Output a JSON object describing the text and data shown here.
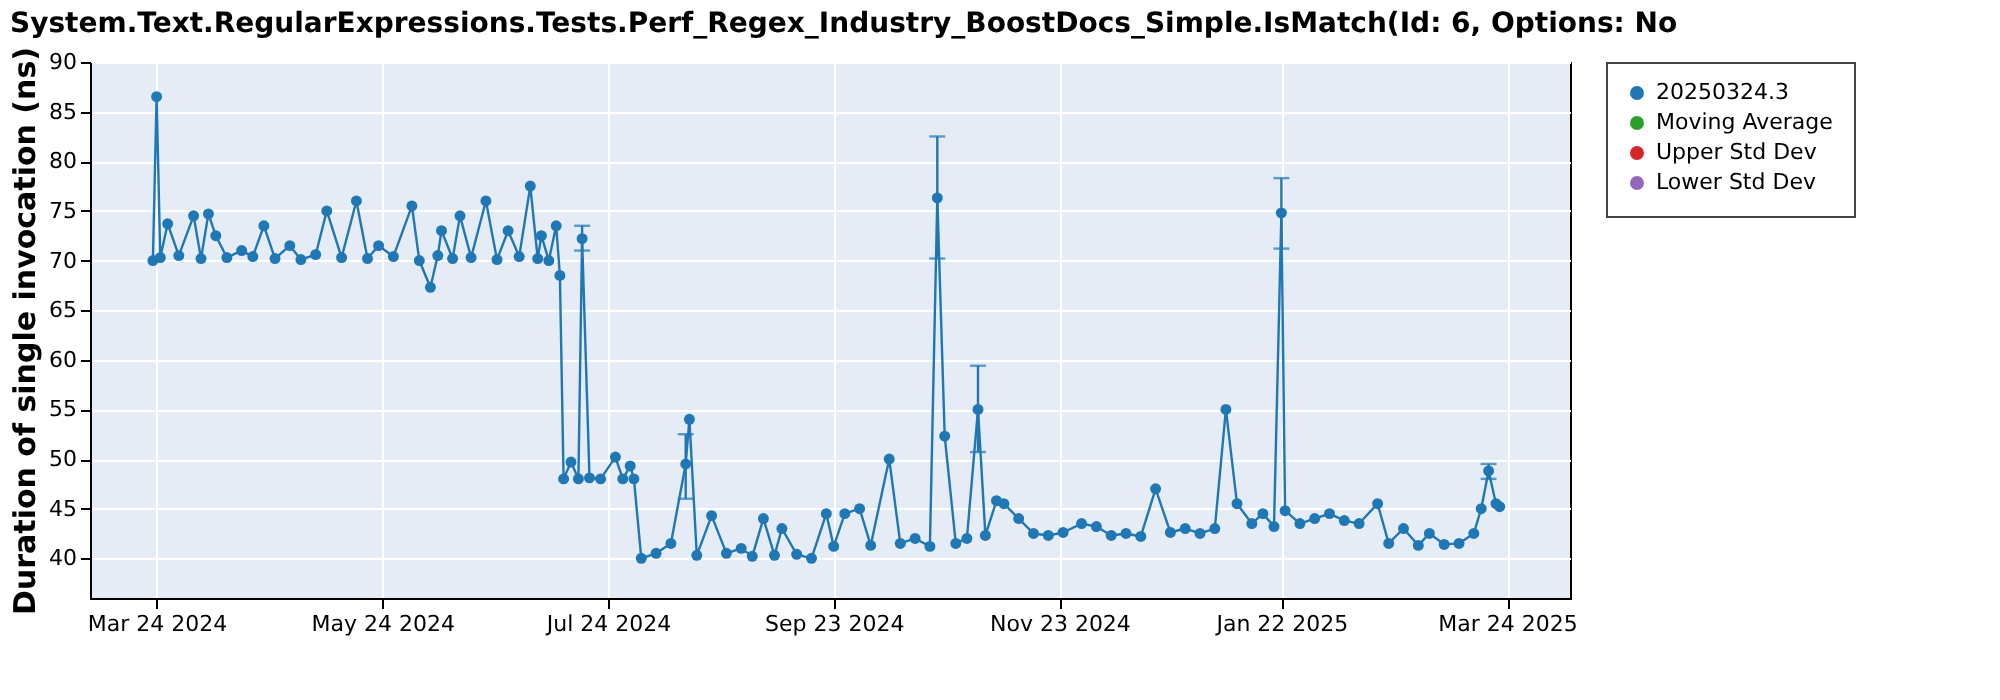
{
  "chart_data": {
    "type": "line",
    "title": "System.Text.RegularExpressions.Tests.Perf_Regex_Industry_BoostDocs_Simple.IsMatch(Id: 6, Options: No",
    "ylabel": "Duration of single invocation (ns)",
    "xlim": [
      "2024-03-06",
      "2025-04-10"
    ],
    "xticks": [
      {
        "value": "2024-03-24",
        "label": "Mar 24 2024"
      },
      {
        "value": "2024-05-24",
        "label": "May 24 2024"
      },
      {
        "value": "2024-07-24",
        "label": "Jul 24 2024"
      },
      {
        "value": "2024-09-23",
        "label": "Sep 23 2024"
      },
      {
        "value": "2024-11-23",
        "label": "Nov 23 2024"
      },
      {
        "value": "2025-01-22",
        "label": "Jan 22 2025"
      },
      {
        "value": "2025-03-24",
        "label": "Mar 24 2025"
      }
    ],
    "ylim": [
      36,
      90
    ],
    "yticks": [
      40,
      45,
      50,
      55,
      60,
      65,
      70,
      75,
      80,
      85,
      90
    ],
    "grid": true,
    "legend": "right",
    "marker": "circle",
    "line_style": "solid",
    "series": [
      {
        "name": "20250324.3",
        "color": "#1f77b4",
        "x": [
          "2024-03-23",
          "2024-03-24",
          "2024-03-25",
          "2024-03-27",
          "2024-03-30",
          "2024-04-03",
          "2024-04-05",
          "2024-04-07",
          "2024-04-09",
          "2024-04-12",
          "2024-04-16",
          "2024-04-19",
          "2024-04-22",
          "2024-04-25",
          "2024-04-29",
          "2024-05-02",
          "2024-05-06",
          "2024-05-09",
          "2024-05-13",
          "2024-05-17",
          "2024-05-20",
          "2024-05-23",
          "2024-05-27",
          "2024-06-01",
          "2024-06-03",
          "2024-06-06",
          "2024-06-08",
          "2024-06-09",
          "2024-06-12",
          "2024-06-14",
          "2024-06-17",
          "2024-06-21",
          "2024-06-24",
          "2024-06-27",
          "2024-06-30",
          "2024-07-03",
          "2024-07-05",
          "2024-07-06",
          "2024-07-08",
          "2024-07-10",
          "2024-07-11",
          "2024-07-12",
          "2024-07-14",
          "2024-07-16",
          "2024-07-17",
          "2024-07-19",
          "2024-07-22",
          "2024-07-26",
          "2024-07-28",
          "2024-07-30",
          "2024-07-31",
          "2024-08-02",
          "2024-08-06",
          "2024-08-10",
          "2024-08-14",
          "2024-08-15",
          "2024-08-17",
          "2024-08-21",
          "2024-08-25",
          "2024-08-29",
          "2024-09-01",
          "2024-09-04",
          "2024-09-07",
          "2024-09-09",
          "2024-09-13",
          "2024-09-17",
          "2024-09-21",
          "2024-09-23",
          "2024-09-26",
          "2024-09-30",
          "2024-10-03",
          "2024-10-08",
          "2024-10-11",
          "2024-10-15",
          "2024-10-19",
          "2024-10-21",
          "2024-10-23",
          "2024-10-26",
          "2024-10-29",
          "2024-11-01",
          "2024-11-03",
          "2024-11-06",
          "2024-11-08",
          "2024-11-12",
          "2024-11-16",
          "2024-11-20",
          "2024-11-24",
          "2024-11-29",
          "2024-12-03",
          "2024-12-07",
          "2024-12-11",
          "2024-12-15",
          "2024-12-19",
          "2024-12-23",
          "2024-12-27",
          "2024-12-31",
          "2025-01-04",
          "2025-01-07",
          "2025-01-10",
          "2025-01-14",
          "2025-01-17",
          "2025-01-20",
          "2025-01-22",
          "2025-01-23",
          "2025-01-27",
          "2025-01-31",
          "2025-02-04",
          "2025-02-08",
          "2025-02-12",
          "2025-02-17",
          "2025-02-20",
          "2025-02-24",
          "2025-02-28",
          "2025-03-03",
          "2025-03-07",
          "2025-03-11",
          "2025-03-15",
          "2025-03-17",
          "2025-03-19",
          "2025-03-21",
          "2025-03-22"
        ],
        "values": [
          70.0,
          86.5,
          70.3,
          73.7,
          70.5,
          74.5,
          70.2,
          74.7,
          72.5,
          70.3,
          71.0,
          70.4,
          73.5,
          70.2,
          71.5,
          70.1,
          70.6,
          75.0,
          70.3,
          76.0,
          70.2,
          71.5,
          70.4,
          75.5,
          70.0,
          67.3,
          70.5,
          73.0,
          70.2,
          74.5,
          70.3,
          76.0,
          70.1,
          73.0,
          70.4,
          77.5,
          70.2,
          72.5,
          70.0,
          73.5,
          68.5,
          48.0,
          49.7,
          48.0,
          72.2,
          48.1,
          48.0,
          50.2,
          48.0,
          49.3,
          48.0,
          40.0,
          40.5,
          41.5,
          49.5,
          54.0,
          40.3,
          44.3,
          40.5,
          41.0,
          40.2,
          44.0,
          40.3,
          43.0,
          40.4,
          40.0,
          44.5,
          41.2,
          44.5,
          45.0,
          41.3,
          50.0,
          41.5,
          42.0,
          41.2,
          76.3,
          52.3,
          41.5,
          42.0,
          55.0,
          42.3,
          45.8,
          45.5,
          44.0,
          42.5,
          42.3,
          42.6,
          43.5,
          43.2,
          42.3,
          42.5,
          42.2,
          47.0,
          42.6,
          43.0,
          42.5,
          43.0,
          55.0,
          45.5,
          43.5,
          44.5,
          43.2,
          74.8,
          44.8,
          43.5,
          44.0,
          44.5,
          43.8,
          43.5,
          45.5,
          41.5,
          43.0,
          41.3,
          42.5,
          41.4,
          41.5,
          42.5,
          45.0,
          48.8,
          45.5,
          45.2
        ],
        "errors": [
          null,
          null,
          null,
          null,
          null,
          null,
          null,
          null,
          null,
          null,
          null,
          null,
          null,
          null,
          null,
          null,
          null,
          null,
          null,
          null,
          null,
          null,
          null,
          null,
          null,
          null,
          null,
          null,
          null,
          null,
          null,
          null,
          null,
          null,
          null,
          null,
          null,
          null,
          null,
          null,
          null,
          null,
          null,
          null,
          [
            71.0,
            73.5
          ],
          null,
          null,
          null,
          null,
          null,
          null,
          null,
          null,
          null,
          [
            46.0,
            52.5
          ],
          null,
          null,
          null,
          null,
          null,
          null,
          null,
          null,
          null,
          null,
          null,
          null,
          null,
          null,
          null,
          null,
          null,
          null,
          null,
          null,
          [
            70.2,
            82.5
          ],
          null,
          null,
          null,
          [
            50.7,
            59.4
          ],
          null,
          null,
          null,
          null,
          null,
          null,
          null,
          null,
          null,
          null,
          null,
          null,
          null,
          null,
          null,
          null,
          null,
          null,
          null,
          null,
          null,
          null,
          [
            71.2,
            78.3
          ],
          null,
          null,
          null,
          null,
          null,
          null,
          null,
          null,
          null,
          null,
          null,
          null,
          null,
          null,
          null,
          [
            48.0,
            49.5
          ],
          null,
          null
        ]
      },
      {
        "name": "Moving Average",
        "color": "#2ca02c"
      },
      {
        "name": "Upper Std Dev",
        "color": "#d62728"
      },
      {
        "name": "Lower Std Dev",
        "color": "#9467bd"
      }
    ]
  }
}
